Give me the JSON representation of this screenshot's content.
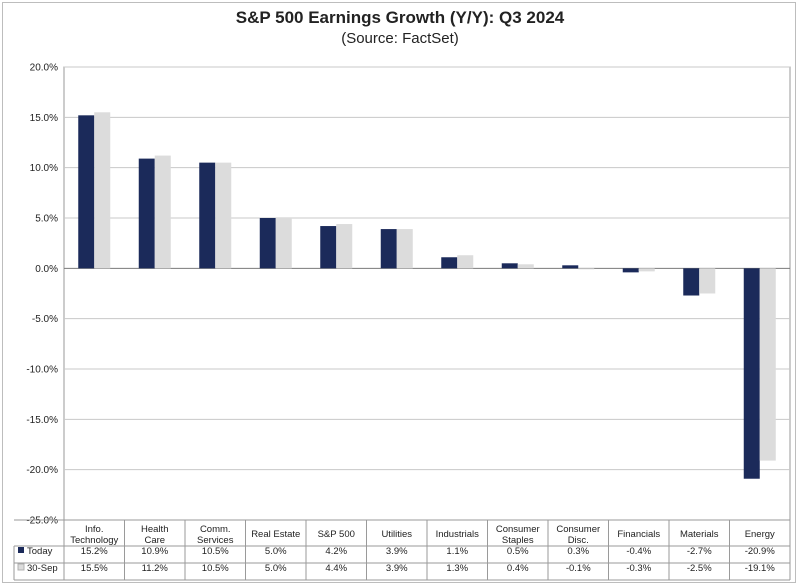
{
  "chart_data": {
    "type": "bar",
    "title": "S&P 500 Earnings Growth (Y/Y): Q3 2024",
    "subtitle": "(Source: FactSet)",
    "xlabel": "",
    "ylabel": "",
    "ylim": [
      -25,
      20
    ],
    "y_ticks": [
      "20.0%",
      "15.0%",
      "10.0%",
      "5.0%",
      "0.0%",
      "-5.0%",
      "-10.0%",
      "-15.0%",
      "-20.0%",
      "-25.0%"
    ],
    "y_tick_values": [
      20,
      15,
      10,
      5,
      0,
      -5,
      -10,
      -15,
      -20,
      -25
    ],
    "grid": true,
    "legend": "in data table, left",
    "categories": [
      [
        "Info.",
        "Technology"
      ],
      [
        "Health",
        "Care"
      ],
      [
        "Comm.",
        "Services"
      ],
      [
        "Real Estate"
      ],
      [
        "S&P 500"
      ],
      [
        "Utilities"
      ],
      [
        "Industrials"
      ],
      [
        "Consumer",
        "Staples"
      ],
      [
        "Consumer",
        "Disc."
      ],
      [
        "Financials"
      ],
      [
        "Materials"
      ],
      [
        "Energy"
      ]
    ],
    "series": [
      {
        "name": "Today",
        "color": "#1b2a5a",
        "values": [
          15.2,
          10.9,
          10.5,
          5.0,
          4.2,
          3.9,
          1.1,
          0.5,
          0.3,
          -0.4,
          -2.7,
          -20.9
        ],
        "labels": [
          "15.2%",
          "10.9%",
          "10.5%",
          "5.0%",
          "4.2%",
          "3.9%",
          "1.1%",
          "0.5%",
          "0.3%",
          "-0.4%",
          "-2.7%",
          "-20.9%"
        ]
      },
      {
        "name": "30-Sep",
        "color": "#dcdcdc",
        "values": [
          15.5,
          11.2,
          10.5,
          5.0,
          4.4,
          3.9,
          1.3,
          0.4,
          -0.1,
          -0.3,
          -2.5,
          -19.1
        ],
        "labels": [
          "15.5%",
          "11.2%",
          "10.5%",
          "5.0%",
          "4.4%",
          "3.9%",
          "1.3%",
          "0.4%",
          "-0.1%",
          "-0.3%",
          "-2.5%",
          "-19.1%"
        ]
      }
    ]
  }
}
